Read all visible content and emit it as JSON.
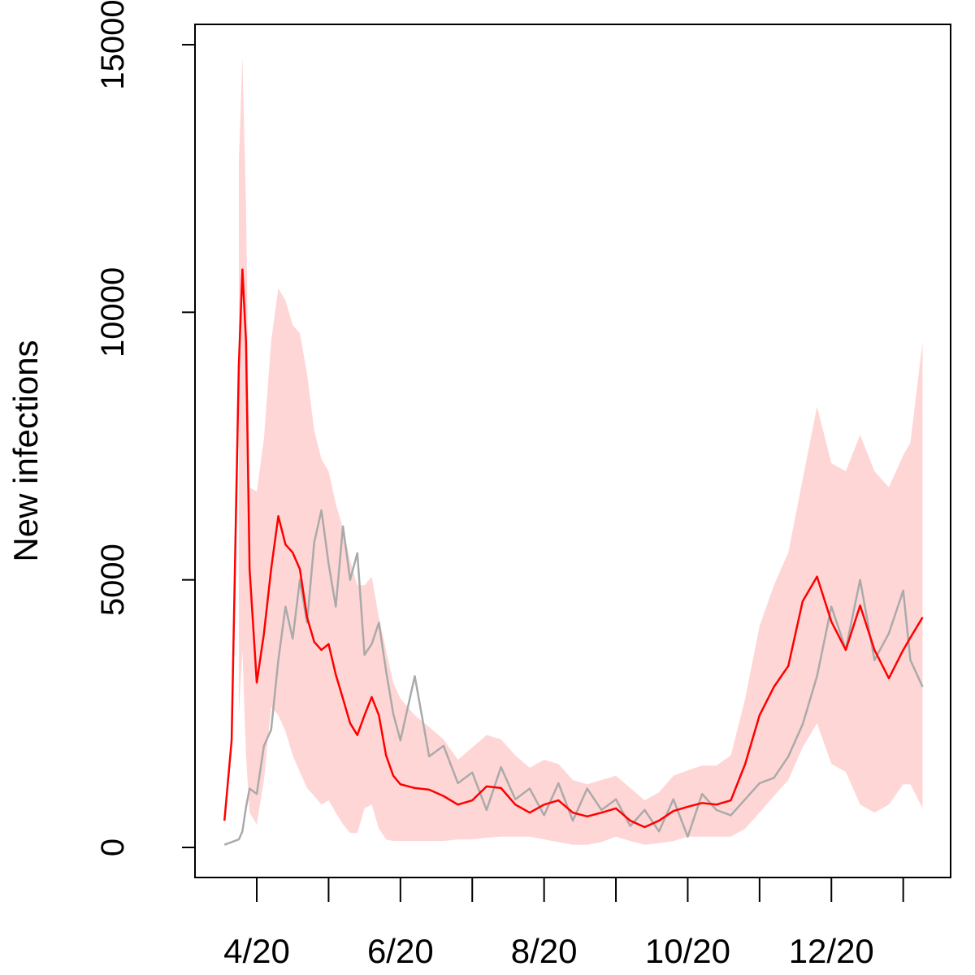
{
  "chart_data": {
    "type": "line",
    "ylabel": "New infections",
    "x": [
      3.55,
      3.65,
      3.75,
      3.8,
      3.85,
      3.9,
      4.0,
      4.1,
      4.2,
      4.3,
      4.4,
      4.5,
      4.6,
      4.7,
      4.8,
      4.9,
      5.0,
      5.1,
      5.2,
      5.3,
      5.4,
      5.5,
      5.6,
      5.7,
      5.8,
      5.9,
      6.0,
      6.2,
      6.4,
      6.6,
      6.8,
      7.0,
      7.2,
      7.4,
      7.6,
      7.8,
      8.0,
      8.2,
      8.4,
      8.6,
      8.8,
      9.0,
      9.2,
      9.4,
      9.6,
      9.8,
      10.0,
      10.2,
      10.4,
      10.6,
      10.8,
      11.0,
      11.2,
      11.4,
      11.6,
      11.8,
      12.0,
      12.2,
      12.4,
      12.6,
      12.8,
      13.0,
      13.1,
      13.27
    ],
    "band": {
      "color": "#ffd6d6",
      "upper": [
        null,
        null,
        12800,
        14770,
        12040,
        6730,
        6650,
        7640,
        9460,
        10450,
        10220,
        9760,
        9610,
        8850,
        7790,
        7260,
        7030,
        6420,
        5970,
        5360,
        4900,
        4900,
        5060,
        4300,
        3690,
        3080,
        2780,
        2470,
        2250,
        2020,
        1640,
        1870,
        2100,
        2020,
        1720,
        1490,
        1640,
        1560,
        1260,
        1180,
        1260,
        1340,
        1110,
        880,
        1030,
        1340,
        1440,
        1530,
        1530,
        1720,
        2780,
        4140,
        4900,
        5510,
        6880,
        8240,
        7180,
        7030,
        7710,
        7030,
        6730,
        7330,
        7560,
        9460
      ],
      "lower": [
        null,
        null,
        2470,
        3690,
        1720,
        650,
        430,
        1260,
        2630,
        2470,
        2170,
        1720,
        1410,
        1110,
        960,
        800,
        880,
        650,
        430,
        270,
        270,
        730,
        800,
        350,
        150,
        120,
        120,
        120,
        120,
        120,
        150,
        150,
        180,
        200,
        200,
        200,
        150,
        100,
        50,
        50,
        100,
        200,
        120,
        50,
        80,
        120,
        200,
        200,
        200,
        200,
        350,
        650,
        960,
        1260,
        1870,
        2320,
        1560,
        1410,
        800,
        650,
        800,
        1180,
        1180,
        730
      ]
    },
    "series": [
      {
        "color": "#aaaaaa",
        "values": [
          50,
          100,
          150,
          300,
          750,
          1100,
          1000,
          1900,
          2200,
          3500,
          4500,
          3900,
          5000,
          4200,
          5700,
          6300,
          5300,
          4500,
          6000,
          5000,
          5500,
          3600,
          3800,
          4200,
          3300,
          2500,
          2000,
          3200,
          1700,
          1900,
          1200,
          1400,
          700,
          1500,
          900,
          1100,
          600,
          1200,
          500,
          1100,
          700,
          900,
          400,
          700,
          300,
          900,
          200,
          1000,
          700,
          600,
          900,
          1200,
          1300,
          1700,
          2300,
          3200,
          4500,
          3700,
          5000,
          3500,
          4000,
          4800,
          3500,
          3000
        ]
      },
      {
        "color": "#ff0000",
        "values": [
          500,
          2000,
          9000,
          10800,
          9460,
          5200,
          3080,
          4000,
          5200,
          6190,
          5660,
          5510,
          5200,
          4300,
          3840,
          3690,
          3800,
          3230,
          2780,
          2320,
          2100,
          2470,
          2810,
          2470,
          1720,
          1340,
          1180,
          1110,
          1080,
          960,
          800,
          880,
          1140,
          1110,
          800,
          650,
          800,
          880,
          650,
          580,
          650,
          730,
          500,
          380,
          500,
          680,
          760,
          830,
          800,
          880,
          1560,
          2470,
          3000,
          3390,
          4600,
          5060,
          4220,
          3690,
          4520,
          3690,
          3160,
          3690,
          3920,
          4300
        ]
      }
    ],
    "xlim": [
      3.14,
      13.66
    ],
    "xticks": [
      {
        "value": 4,
        "label": "4/20"
      },
      {
        "value": 5,
        "label": null
      },
      {
        "value": 6,
        "label": "6/20"
      },
      {
        "value": 7,
        "label": null
      },
      {
        "value": 8,
        "label": "8/20"
      },
      {
        "value": 9,
        "label": null
      },
      {
        "value": 10,
        "label": "10/20"
      },
      {
        "value": 11,
        "label": null
      },
      {
        "value": 12,
        "label": "12/20"
      },
      {
        "value": 13,
        "label": null
      }
    ],
    "ylim": [
      -562,
      15380
    ],
    "yticks": [
      0,
      5000,
      10000,
      15000
    ]
  }
}
